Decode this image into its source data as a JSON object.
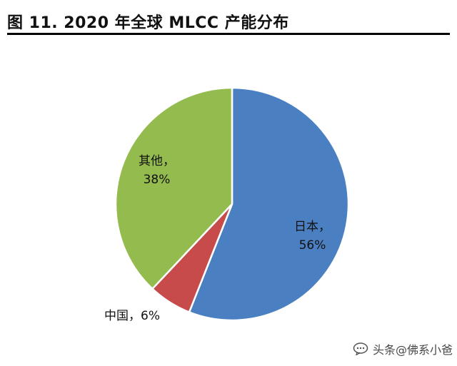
{
  "figure": {
    "title": "图 11. 2020 年全球 MLCC 产能分布"
  },
  "chart_data": {
    "type": "pie",
    "title": "图 11. 2020 年全球 MLCC 产能分布",
    "start_angle_deg": 0,
    "direction": "clockwise",
    "slices": [
      {
        "name": "日本",
        "percent_label": "56%",
        "label_text": "日本，",
        "value": 56,
        "color": "#4a7fc1"
      },
      {
        "name": "中国",
        "percent_label": "6%",
        "label_text": "中国，6%",
        "value": 6,
        "color": "#c84b4b"
      },
      {
        "name": "其他",
        "percent_label": "38%",
        "label_text": "其他，",
        "value": 38,
        "color": "#94bb4e"
      }
    ],
    "legend": "none"
  },
  "watermark": {
    "text": "头条@佛系小爸"
  }
}
